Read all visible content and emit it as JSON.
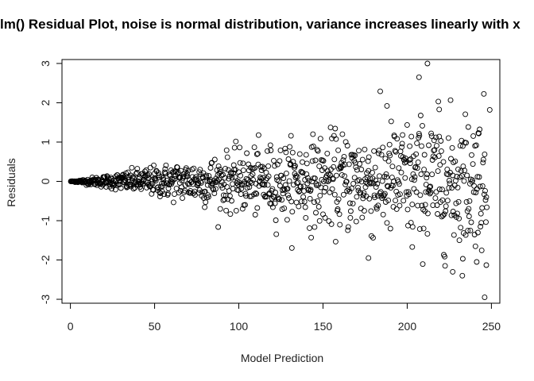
{
  "chart_data": {
    "type": "scatter",
    "title": "lm() Residual Plot, noise is normal distribution, variance increases linearly with x",
    "xlabel": "Model Prediction",
    "ylabel": "Residuals",
    "xlim": [
      -5,
      255
    ],
    "ylim": [
      -3.1,
      3.1
    ],
    "x_ticks": [
      0,
      50,
      100,
      150,
      200,
      250
    ],
    "y_ticks": [
      -3,
      -2,
      -1,
      0,
      1,
      2,
      3
    ],
    "grid": false,
    "legend": "none",
    "marker": "open-circle",
    "point_color": "#000000",
    "point_count": 1000,
    "highlighted_points": [
      {
        "x": 212,
        "y": 3.0
      },
      {
        "x": 207,
        "y": 2.65
      },
      {
        "x": 188,
        "y": 1.92
      },
      {
        "x": 219,
        "y": 1.83
      },
      {
        "x": 249,
        "y": 1.82
      },
      {
        "x": 203,
        "y": -1.67
      },
      {
        "x": 227,
        "y": -2.3
      },
      {
        "x": 233,
        "y": -1.97
      },
      {
        "x": 247,
        "y": -2.13
      },
      {
        "x": 246,
        "y": -2.95
      },
      {
        "x": 177,
        "y": -1.95
      }
    ]
  }
}
